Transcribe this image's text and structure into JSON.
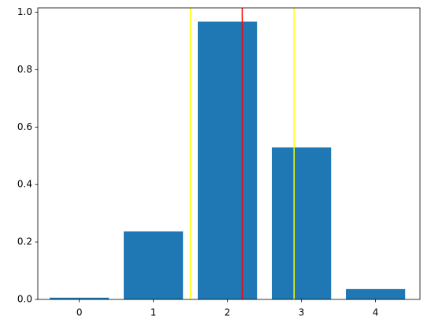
{
  "chart_data": {
    "type": "bar",
    "x": [
      0,
      1,
      2,
      3,
      4
    ],
    "values": [
      0.006,
      0.237,
      0.967,
      0.529,
      0.036
    ],
    "color": "#1f77b4",
    "bar_width": 0.8,
    "vlines": [
      {
        "x": 1.5,
        "color": "#ffff00"
      },
      {
        "x": 2.2,
        "color": "#ff0000"
      },
      {
        "x": 2.9,
        "color": "#ffff00"
      }
    ],
    "xlim": [
      -0.56,
      4.6
    ],
    "xticks": [
      0,
      1,
      2,
      3,
      4
    ],
    "ylim": [
      0,
      1.015
    ],
    "yticks": [
      {
        "value": 0,
        "label": "0.0"
      },
      0.2,
      0.4,
      0.6,
      0.8,
      {
        "value": 1,
        "label": "1.0"
      }
    ]
  }
}
